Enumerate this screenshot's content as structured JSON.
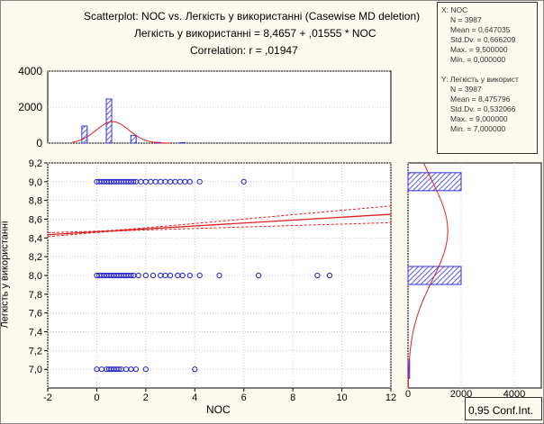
{
  "chart_data": {
    "type": "scatter",
    "title": "Scatterplot: NOC    vs. Легкість у використанні (Casewise MD deletion)",
    "equation": "Легкість у використанні = 8,4657 + ,01555 * NOC",
    "correlation": "Correlation: r = ,01947",
    "xlabel": "NOC",
    "ylabel": "Легкість у використанні",
    "xlim": [
      -2,
      12
    ],
    "ylim": [
      6.8,
      9.2
    ],
    "x_ticks": [
      "-2",
      "0",
      "2",
      "4",
      "6",
      "8",
      "10",
      "12"
    ],
    "y_ticks": [
      "9,2",
      "9,0",
      "8,8",
      "8,6",
      "8,4",
      "8,2",
      "8,0",
      "7,8",
      "7,6",
      "7,4",
      "7,2",
      "7,0"
    ],
    "regression": {
      "intercept": 8.4657,
      "slope": 0.01555
    },
    "points": [
      {
        "y": 9,
        "x": [
          0,
          0.1,
          0.2,
          0.3,
          0.4,
          0.5,
          0.6,
          0.7,
          0.8,
          0.9,
          1,
          1.1,
          1.2,
          1.3,
          1.4,
          1.5,
          1.6,
          1.8,
          2,
          2.2,
          2.4,
          2.6,
          2.8,
          3,
          3.2,
          3.4,
          3.6,
          3.8,
          4.2,
          6
        ]
      },
      {
        "y": 8,
        "x": [
          0,
          0.1,
          0.2,
          0.3,
          0.4,
          0.5,
          0.6,
          0.7,
          0.8,
          0.9,
          1,
          1.1,
          1.2,
          1.3,
          1.4,
          1.5,
          1.7,
          2,
          2.3,
          2.6,
          2.8,
          3,
          3.3,
          3.5,
          3.8,
          4.2,
          5,
          6.6,
          9,
          9.5
        ]
      },
      {
        "y": 7,
        "x": [
          0,
          0.2,
          0.4,
          0.5,
          0.6,
          0.7,
          0.8,
          0.9,
          1,
          1.2,
          1.4,
          1.6,
          2,
          4
        ]
      }
    ],
    "top_hist": {
      "ylim": [
        0,
        4000
      ],
      "y_ticks": [
        "4000",
        "2000",
        "0"
      ],
      "bins": [
        {
          "x": -0.5,
          "v": 950
        },
        {
          "x": 0.5,
          "v": 2450
        },
        {
          "x": 1.5,
          "v": 430
        },
        {
          "x": 2.5,
          "v": 40
        },
        {
          "x": 3.5,
          "v": 25
        }
      ],
      "mean": 0.647,
      "sd": 0.666
    },
    "right_hist": {
      "xlim": [
        0,
        4000
      ],
      "x_ticks": [
        "0",
        "2000",
        "4000"
      ],
      "bins": [
        {
          "y": 9,
          "v": 2000
        },
        {
          "y": 8,
          "v": 2000
        },
        {
          "y": 7,
          "v": 60
        }
      ],
      "mean": 8.476,
      "sd": 0.532
    },
    "stats_x": {
      "title": "X:  NOC",
      "lines": [
        "N = 3987",
        "Mean = 0,647035",
        "Std.Dv. = 0,666209",
        "Max. = 9,500000",
        "Min. = 0,000000"
      ]
    },
    "stats_y": {
      "title": "Y:  Легкість у використ",
      "lines": [
        "N = 3987",
        "Mean = 8,475796",
        "Std.Dv. = 0,532066",
        "Max. = 9,000000",
        "Min. = 7,000000"
      ]
    },
    "conf_label": "0,95 Conf.Int.",
    "colors": {
      "points": "#2020d0",
      "fit": "#e02020",
      "bars": "#3030e0"
    }
  }
}
